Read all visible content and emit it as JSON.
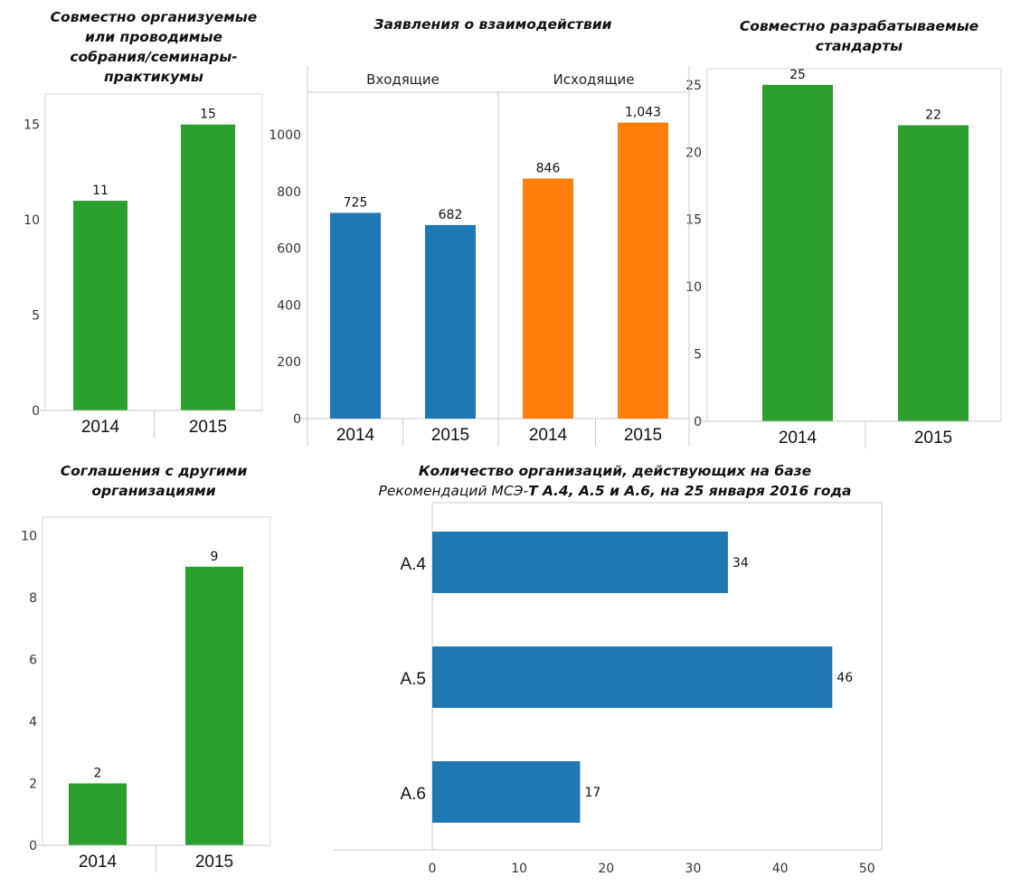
{
  "chart_data": [
    {
      "id": "seminars",
      "type": "bar",
      "title": "Совместно организуемые или проводимые собрания/семинары-практикумы",
      "title_lines": [
        "Совместно организуемые",
        "или проводимые",
        "собрания/семинары-",
        "практикумы"
      ],
      "categories": [
        "2014",
        "2015"
      ],
      "values": [
        11,
        15
      ],
      "labels": [
        "11",
        "15"
      ],
      "color": "#2ca02c",
      "ylim": [
        0,
        16.6
      ],
      "yticks": [
        "0",
        "5",
        "10",
        "15"
      ],
      "ytick_values": [
        0,
        5,
        10,
        15
      ]
    },
    {
      "id": "statements",
      "type": "bar",
      "title": "Заявления о взаимодействии",
      "title_lines": [
        "Заявления о взаимодействии"
      ],
      "panels": [
        {
          "header": "Входящие",
          "categories": [
            "2014",
            "2015"
          ],
          "values": [
            725,
            682
          ],
          "labels": [
            "725",
            "682"
          ],
          "color": "#1f77b4"
        },
        {
          "header": "Исходящие",
          "categories": [
            "2014",
            "2015"
          ],
          "values": [
            846,
            1043
          ],
          "labels": [
            "846",
            "1,043"
          ],
          "color": "#ff7f0e"
        }
      ],
      "ylim": [
        0,
        1150
      ],
      "yticks": [
        "0",
        "200",
        "400",
        "600",
        "800",
        "1000"
      ],
      "ytick_values": [
        0,
        200,
        400,
        600,
        800,
        1000
      ]
    },
    {
      "id": "standards",
      "type": "bar",
      "title": "Совместно разрабатываемые стандарты",
      "title_lines": [
        "Совместно разрабатываемые",
        "стандарты"
      ],
      "categories": [
        "2014",
        "2015"
      ],
      "values": [
        25,
        22
      ],
      "labels": [
        "25",
        "22"
      ],
      "color": "#2ca02c",
      "ylim": [
        0,
        26.2
      ],
      "yticks": [
        "0",
        "5",
        "10",
        "15",
        "20",
        "25"
      ],
      "ytick_values": [
        0,
        5,
        10,
        15,
        20,
        25
      ]
    },
    {
      "id": "agreements",
      "type": "bar",
      "title": "Соглашения с другими организациями",
      "title_lines": [
        "Соглашения с другими",
        "организациями"
      ],
      "categories": [
        "2014",
        "2015"
      ],
      "values": [
        2,
        9
      ],
      "labels": [
        "2",
        "9"
      ],
      "color": "#2ca02c",
      "ylim": [
        0,
        10.6
      ],
      "yticks": [
        "0",
        "2",
        "4",
        "6",
        "8",
        "10"
      ],
      "ytick_values": [
        0,
        2,
        4,
        6,
        8,
        10
      ]
    },
    {
      "id": "organizations",
      "type": "bar",
      "orientation": "horizontal",
      "title": "Количество организаций, действующих на базе Рекомендаций МСЭ-Т А.4, А.5 и А.6, на 25 января 2016 года",
      "title_line1": "Количество организаций, действующих на базе",
      "title_line2_a": "Рекомендаций МСЭ-",
      "title_line2_b": "Т А.4, А.5 и А.6, на 25 января 2016 года",
      "categories": [
        "A.4",
        "A.5",
        "A.6"
      ],
      "values": [
        34,
        46,
        17
      ],
      "labels": [
        "34",
        "46",
        "17"
      ],
      "color": "#1f77b4",
      "xlim": [
        0,
        52
      ],
      "xticks": [
        "0",
        "10",
        "20",
        "30",
        "40",
        "50"
      ],
      "xtick_values": [
        0,
        10,
        20,
        30,
        40,
        50
      ]
    }
  ]
}
